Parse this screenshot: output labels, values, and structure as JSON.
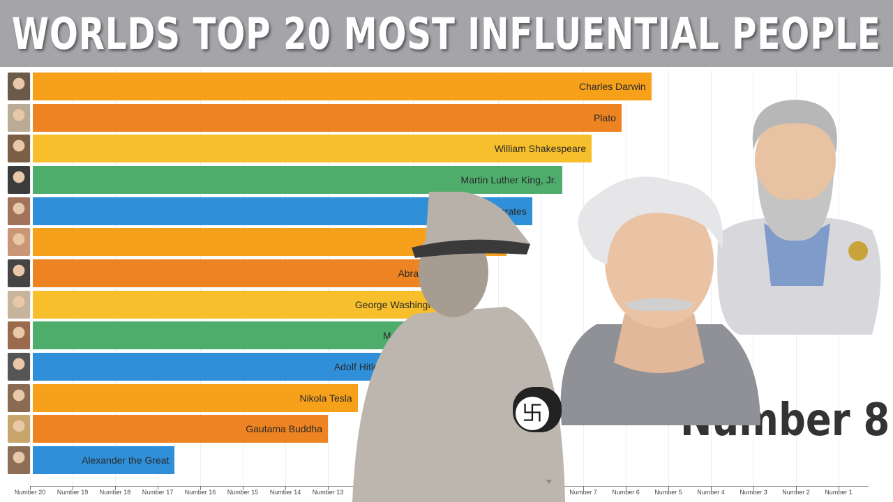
{
  "title": "WORLDS TOP 20 MOST INFLUENTIAL PEOPLE",
  "overlay_text": "Number 8",
  "chart_data": {
    "type": "bar",
    "orientation": "horizontal",
    "title": "WORLDS TOP 20 MOST INFLUENTIAL PEOPLE",
    "axis_ticks": [
      "Number 20",
      "Number 19",
      "Number 18",
      "Number 17",
      "Number 16",
      "Number 15",
      "Number 14",
      "Number 13",
      "Number 8",
      "Number 7",
      "Number 6",
      "Number 5",
      "Number 4",
      "Number 3",
      "Number 2",
      "Number 1"
    ],
    "axis_tick_positions": [
      20,
      19,
      18,
      17,
      16,
      15,
      14,
      13,
      8,
      7,
      6,
      5,
      4,
      3,
      2,
      1
    ],
    "xlim": [
      20,
      0.6
    ],
    "grid": true,
    "categories": [
      "Charles Darwin",
      "Plato",
      "William Shakespeare",
      "Martin Luther King, Jr.",
      "Socrates",
      "",
      "Abraham Lincoln",
      "George Washington",
      "Moses",
      "Adolf Hitler",
      "Nikola Tesla",
      "Gautama Buddha",
      "Alexander the Great"
    ],
    "values": [
      5.4,
      6.1,
      6.8,
      7.5,
      8.2,
      8.8,
      9.5,
      10.2,
      10.9,
      11.6,
      12.3,
      13.0,
      16.6
    ],
    "colors": [
      "#f7a11b",
      "#ee8322",
      "#f6bf2b",
      "#4fad6c",
      "#2f8fd8",
      "#f7a11b",
      "#ee8322",
      "#f6bf2b",
      "#4fad6c",
      "#2f8fd8",
      "#f7a11b",
      "#ee8322",
      "#2f8fd8"
    ],
    "marker_at": 8
  },
  "overlay_images": [
    "hitler-portrait",
    "einstein-portrait",
    "aristotle-portrait"
  ]
}
